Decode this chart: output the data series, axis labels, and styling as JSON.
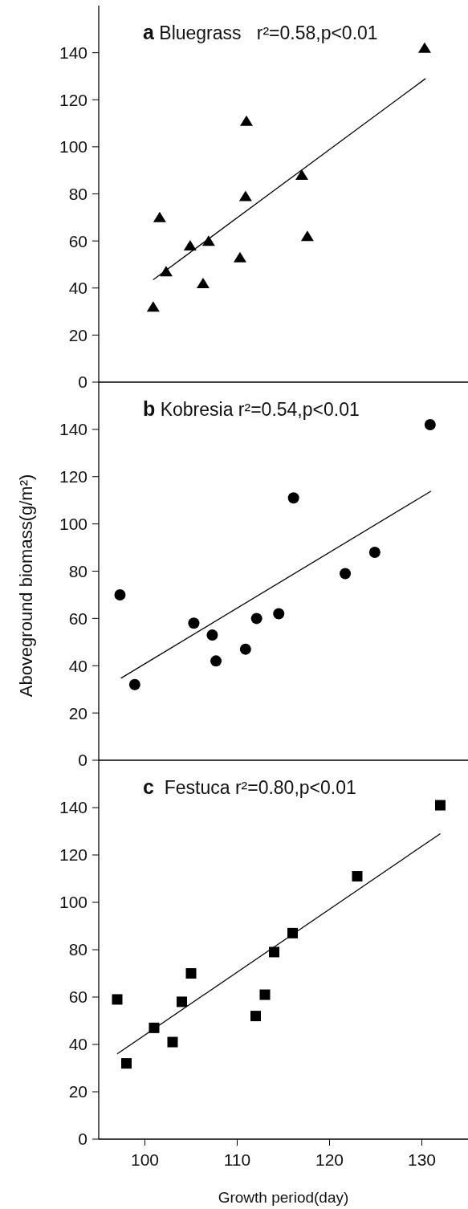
{
  "chart_data": [
    {
      "type": "scatter",
      "title": "a Bluegrass   r²=0.58,p<0.01",
      "xlim": [
        95,
        135
      ],
      "ylim": [
        0,
        160
      ],
      "yticks": [
        0,
        20,
        40,
        60,
        80,
        100,
        120,
        140
      ],
      "tick_labels": "y",
      "series": [
        {
          "marker": "triangle",
          "color": "#000000",
          "x": [
            100.9,
            101.6,
            102.3,
            104.9,
            106.3,
            106.9,
            110.3,
            110.9,
            111.0,
            117.0,
            117.6,
            130.3
          ],
          "values": [
            32,
            70,
            47,
            58,
            42,
            60,
            53,
            79,
            111,
            88,
            62,
            142
          ]
        },
        {
          "type": "line",
          "marker": "none",
          "color": "#000000",
          "x": [
            100.9,
            130.4
          ],
          "values": [
            43.5,
            129
          ]
        }
      ]
    },
    {
      "type": "scatter",
      "title": "b Kobresia r²=0.54,p<0.01",
      "ylabel": "Aboveground biomass(g/m²)",
      "xlim": [
        95,
        135
      ],
      "ylim": [
        0,
        160
      ],
      "yticks": [
        0,
        20,
        40,
        60,
        80,
        100,
        120,
        140
      ],
      "tick_labels": "y",
      "series": [
        {
          "marker": "circle",
          "color": "#000000",
          "x": [
            97.3,
            98.9,
            105.3,
            107.3,
            107.7,
            110.9,
            112.1,
            114.5,
            116.1,
            121.7,
            124.9,
            130.9
          ],
          "values": [
            70,
            32,
            58,
            53,
            42,
            47,
            60,
            62,
            111,
            79,
            88,
            142
          ]
        },
        {
          "type": "line",
          "marker": "none",
          "color": "#000000",
          "x": [
            97.4,
            131.0
          ],
          "values": [
            34.7,
            113.9
          ]
        }
      ]
    },
    {
      "type": "scatter",
      "title": "c  Festuca r²=0.80,p<0.01",
      "xlabel": "Growth period(day)",
      "xlim": [
        95,
        135
      ],
      "xticks": [
        100,
        110,
        120,
        130
      ],
      "ylim": [
        0,
        160
      ],
      "yticks": [
        0,
        20,
        40,
        60,
        80,
        100,
        120,
        140
      ],
      "series": [
        {
          "marker": "square",
          "color": "#000000",
          "x": [
            97,
            98,
            101,
            103,
            104,
            105,
            112,
            113,
            114,
            116,
            123,
            132
          ],
          "values": [
            59,
            32,
            47,
            41,
            58,
            70,
            52,
            61,
            79,
            87,
            111,
            141
          ]
        },
        {
          "type": "line",
          "marker": "none",
          "color": "#000000",
          "x": [
            97,
            132
          ],
          "values": [
            36,
            129
          ]
        }
      ]
    }
  ]
}
